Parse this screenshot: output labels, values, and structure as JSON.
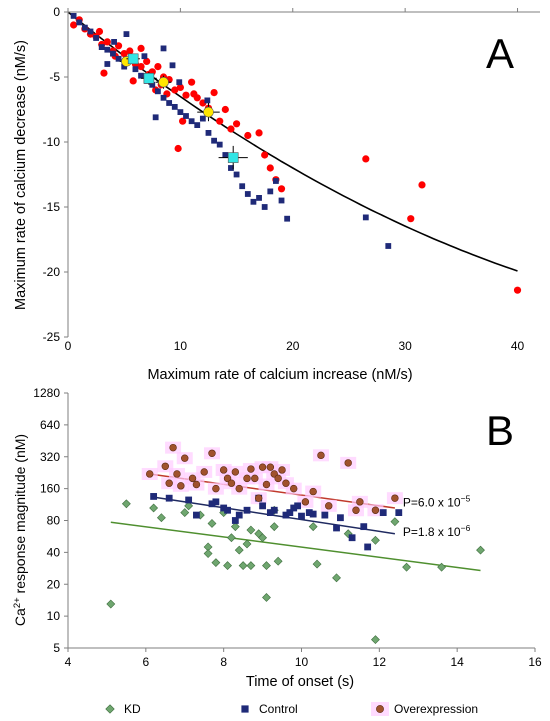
{
  "colors": {
    "red": "#ff0000",
    "navy": "#1f2a78",
    "black": "#000000",
    "cyan": "#33e5e5",
    "yellow": "#ffe600",
    "kd_green": "#6fa66f",
    "kd_line": "#4f8f2f",
    "overexp_brown": "#a0522d",
    "overexp_line": "#c0392b",
    "control_line": "#1f2a60",
    "halo": "#ffccff"
  },
  "chart_data": [
    {
      "id": "A",
      "panel_label": "A",
      "type": "scatter",
      "xlabel": "Maximum rate of calcium increase (nM/s)",
      "ylabel": "Maximum rate of calcium decrease  (nM/s)",
      "xlim": [
        0,
        42
      ],
      "ylim": [
        -25,
        0
      ],
      "xticks": [
        "0",
        "10",
        "20",
        "30",
        "40"
      ],
      "yticks": [
        "0",
        "-5",
        "-10",
        "-15",
        "-20",
        "-25"
      ],
      "xtick_values": [
        0,
        10,
        20,
        30,
        40
      ],
      "ytick_values": [
        0,
        -5,
        -10,
        -15,
        -20,
        -25
      ],
      "grid": false,
      "series": [
        {
          "marker": "circle",
          "color": "#ff0000",
          "points": [
            [
              0.5,
              -1
            ],
            [
              1,
              -0.6
            ],
            [
              1.5,
              -1.3
            ],
            [
              2,
              -1.7
            ],
            [
              2.5,
              -1.9
            ],
            [
              2.8,
              -1.5
            ],
            [
              3,
              -2.5
            ],
            [
              3.5,
              -2.3
            ],
            [
              4,
              -3
            ],
            [
              4.5,
              -2.6
            ],
            [
              4.2,
              -3.4
            ],
            [
              5,
              -3.2
            ],
            [
              5.5,
              -3
            ],
            [
              6,
              -4
            ],
            [
              6.5,
              -4.2
            ],
            [
              7,
              -3.8
            ],
            [
              7.5,
              -4.6
            ],
            [
              8,
              -4.2
            ],
            [
              8.5,
              -5
            ],
            [
              9,
              -5.2
            ],
            [
              9.5,
              -6
            ],
            [
              10,
              -5.8
            ],
            [
              10.5,
              -6.4
            ],
            [
              11,
              -5.4
            ],
            [
              11.5,
              -6.6
            ],
            [
              12,
              -7
            ],
            [
              12.5,
              -7.4
            ],
            [
              13,
              -6.2
            ],
            [
              13.5,
              -8.4
            ],
            [
              14,
              -7.5
            ],
            [
              14.5,
              -9
            ],
            [
              15,
              -8.6
            ],
            [
              16,
              -9.5
            ],
            [
              17,
              -9.3
            ],
            [
              17.5,
              -11
            ],
            [
              18,
              -12
            ],
            [
              18.5,
              -12.9
            ],
            [
              19,
              -13.6
            ],
            [
              6.5,
              -2.8
            ],
            [
              7.2,
              -4.8
            ],
            [
              8.8,
              -6.3
            ],
            [
              9.8,
              -10.5
            ],
            [
              10.2,
              -8.4
            ],
            [
              11.2,
              -6.3
            ],
            [
              3.2,
              -4.7
            ],
            [
              5.8,
              -5.3
            ],
            [
              7.8,
              -6
            ],
            [
              8.3,
              -5.6
            ],
            [
              26.5,
              -11.3
            ],
            [
              30.5,
              -15.9
            ],
            [
              31.5,
              -13.3
            ],
            [
              40,
              -21.4
            ]
          ]
        },
        {
          "marker": "square",
          "color": "#1f2a78",
          "points": [
            [
              0.5,
              -0.3
            ],
            [
              1,
              -0.8
            ],
            [
              1.5,
              -1.2
            ],
            [
              2,
              -1.5
            ],
            [
              2.5,
              -2
            ],
            [
              3,
              -2.7
            ],
            [
              3.5,
              -2.9
            ],
            [
              4,
              -3.2
            ],
            [
              4.5,
              -3.6
            ],
            [
              5,
              -4.2
            ],
            [
              5.5,
              -3.7
            ],
            [
              6,
              -4.4
            ],
            [
              6.5,
              -4.9
            ],
            [
              7,
              -5.3
            ],
            [
              7.5,
              -5.6
            ],
            [
              8,
              -6.1
            ],
            [
              8.5,
              -6.6
            ],
            [
              9,
              -7
            ],
            [
              9.5,
              -7.3
            ],
            [
              10,
              -7.7
            ],
            [
              10.5,
              -8
            ],
            [
              11,
              -8.4
            ],
            [
              11.5,
              -8.7
            ],
            [
              12,
              -8.2
            ],
            [
              12.5,
              -9.3
            ],
            [
              13,
              -9.9
            ],
            [
              13.5,
              -10.2
            ],
            [
              14,
              -11
            ],
            [
              14.5,
              -12
            ],
            [
              15,
              -12.5
            ],
            [
              15.5,
              -13.4
            ],
            [
              16,
              -14
            ],
            [
              16.5,
              -14.6
            ],
            [
              17,
              -14.3
            ],
            [
              17.5,
              -15
            ],
            [
              18,
              -13.8
            ],
            [
              18.5,
              -13
            ],
            [
              19,
              -14.5
            ],
            [
              19.5,
              -15.9
            ],
            [
              8.5,
              -2.8
            ],
            [
              5.2,
              -1.7
            ],
            [
              7.8,
              -8.1
            ],
            [
              3.5,
              -4
            ],
            [
              26.5,
              -15.8
            ],
            [
              28.5,
              -18
            ],
            [
              4.1,
              -2.3
            ],
            [
              6.8,
              -3.4
            ],
            [
              9.3,
              -4.1
            ],
            [
              9.9,
              -5.4
            ],
            [
              12.4,
              -6.8
            ]
          ]
        }
      ],
      "means": [
        {
          "x": 5.2,
          "y": -3.8,
          "color": "#ffe600",
          "marker": "circle",
          "xerr": 0.6,
          "yerr": 0.4
        },
        {
          "x": 5.8,
          "y": -3.6,
          "color": "#33e5e5",
          "marker": "square",
          "xerr": 0.6,
          "yerr": 0.4
        },
        {
          "x": 7.2,
          "y": -5.1,
          "color": "#33e5e5",
          "marker": "square",
          "xerr": 0.7,
          "yerr": 0.5
        },
        {
          "x": 8.5,
          "y": -5.4,
          "color": "#ffe600",
          "marker": "circle",
          "xerr": 0.7,
          "yerr": 0.5
        },
        {
          "x": 12.5,
          "y": -7.7,
          "color": "#ffe600",
          "marker": "circle",
          "xerr": 1.0,
          "yerr": 0.7
        },
        {
          "x": 14.7,
          "y": -11.2,
          "color": "#33e5e5",
          "marker": "square",
          "xerr": 1.3,
          "yerr": 0.9
        }
      ],
      "fit": {
        "type": "quadratic",
        "a": 0.0051,
        "b": -0.702,
        "c": 0,
        "x_range": [
          0,
          40
        ],
        "color": "#000000"
      }
    },
    {
      "id": "B",
      "panel_label": "B",
      "type": "scatter",
      "y_scale": "log",
      "xlabel": "Time of onset (s)",
      "ylabel_parts": [
        "Ca",
        "2+",
        " response  magnitude (nM)"
      ],
      "xlim": [
        4,
        16
      ],
      "ylim": [
        5,
        1280
      ],
      "xticks": [
        "4",
        "6",
        "8",
        "10",
        "12",
        "14",
        "16"
      ],
      "xtick_values": [
        4,
        6,
        8,
        10,
        12,
        14,
        16
      ],
      "yticks": [
        "5",
        "10",
        "20",
        "40",
        "80",
        "160",
        "320",
        "640",
        "1280"
      ],
      "ytick_values": [
        5,
        10,
        20,
        40,
        80,
        160,
        320,
        640,
        1280
      ],
      "grid": false,
      "legend": {
        "position": "bottom",
        "items": [
          {
            "label": "KD",
            "marker": "diamond",
            "color": "#6fa66f"
          },
          {
            "label": "Control",
            "marker": "square",
            "color": "#1f2a78"
          },
          {
            "label": "Overexpression",
            "marker": "circle",
            "color": "#a0522d"
          }
        ]
      },
      "annotations": [
        {
          "text": "P=6.0 x 10",
          "sup": "−5",
          "x": 12.4,
          "y": 118
        },
        {
          "text": "P=1.8 x 10",
          "sup": "−6",
          "x": 12.4,
          "y": 62
        }
      ],
      "series": [
        {
          "name": "KD",
          "marker": "diamond",
          "color": "#6fa66f",
          "line": {
            "color": "#4f8f2f",
            "x": [
              5.1,
              14.6
            ],
            "y": [
              77,
              27
            ]
          },
          "points": [
            [
              5.1,
              13
            ],
            [
              5.5,
              115
            ],
            [
              6.2,
              105
            ],
            [
              6.4,
              85
            ],
            [
              7,
              95
            ],
            [
              7.1,
              110
            ],
            [
              7.4,
              90
            ],
            [
              7.6,
              45
            ],
            [
              7.6,
              39
            ],
            [
              7.7,
              75
            ],
            [
              7.8,
              32
            ],
            [
              8,
              95
            ],
            [
              8.1,
              30
            ],
            [
              8.2,
              55
            ],
            [
              8.3,
              70
            ],
            [
              8.4,
              42
            ],
            [
              8.5,
              30
            ],
            [
              8.6,
              48
            ],
            [
              8.7,
              65
            ],
            [
              8.7,
              30
            ],
            [
              8.9,
              60
            ],
            [
              9,
              55
            ],
            [
              9.1,
              30
            ],
            [
              9.1,
              15
            ],
            [
              9.3,
              100
            ],
            [
              9.3,
              70
            ],
            [
              9.4,
              33
            ],
            [
              10.3,
              70
            ],
            [
              10.4,
              31
            ],
            [
              10.9,
              23
            ],
            [
              11.2,
              60
            ],
            [
              11.9,
              6
            ],
            [
              11.9,
              52
            ],
            [
              12.4,
              78
            ],
            [
              12.7,
              29
            ],
            [
              13.6,
              29
            ],
            [
              14.6,
              42
            ]
          ]
        },
        {
          "name": "Control",
          "marker": "square",
          "color": "#1f2a78",
          "line": {
            "color": "#1f2a60",
            "x": [
              6.2,
              12.4
            ],
            "y": [
              133,
              60
            ]
          },
          "points": [
            [
              6.2,
              135
            ],
            [
              6.6,
              130
            ],
            [
              7.1,
              125
            ],
            [
              7.3,
              90
            ],
            [
              7.7,
              115
            ],
            [
              7.8,
              120
            ],
            [
              8,
              105
            ],
            [
              8.1,
              100
            ],
            [
              8.3,
              80
            ],
            [
              8.4,
              90
            ],
            [
              8.6,
              100
            ],
            [
              8.9,
              130
            ],
            [
              9,
              110
            ],
            [
              9.2,
              95
            ],
            [
              9.3,
              100
            ],
            [
              9.6,
              90
            ],
            [
              9.7,
              95
            ],
            [
              9.8,
              105
            ],
            [
              9.9,
              110
            ],
            [
              10,
              88
            ],
            [
              10.2,
              95
            ],
            [
              10.3,
              92
            ],
            [
              10.6,
              90
            ],
            [
              10.9,
              68
            ],
            [
              11,
              85
            ],
            [
              11.3,
              55
            ],
            [
              11.6,
              70
            ],
            [
              11.7,
              45
            ],
            [
              12.1,
              95
            ],
            [
              12.5,
              95
            ]
          ]
        },
        {
          "name": "Overexpression",
          "marker": "circle",
          "color": "#a0522d",
          "line": {
            "color": "#c0392b",
            "x": [
              6.1,
              12.4
            ],
            "y": [
              220,
              105
            ]
          },
          "points": [
            [
              6.1,
              220
            ],
            [
              6.5,
              260
            ],
            [
              6.6,
              180
            ],
            [
              6.7,
              390
            ],
            [
              6.8,
              220
            ],
            [
              6.9,
              170
            ],
            [
              7,
              310
            ],
            [
              7.2,
              200
            ],
            [
              7.3,
              175
            ],
            [
              7.5,
              230
            ],
            [
              7.7,
              345
            ],
            [
              7.8,
              160
            ],
            [
              8,
              240
            ],
            [
              8.1,
              200
            ],
            [
              8.2,
              180
            ],
            [
              8.3,
              230
            ],
            [
              8.4,
              160
            ],
            [
              8.6,
              200
            ],
            [
              8.7,
              245
            ],
            [
              8.8,
              200
            ],
            [
              8.9,
              130
            ],
            [
              9,
              255
            ],
            [
              9.1,
              175
            ],
            [
              9.2,
              255
            ],
            [
              9.3,
              220
            ],
            [
              9.4,
              200
            ],
            [
              9.5,
              240
            ],
            [
              9.6,
              180
            ],
            [
              9.8,
              160
            ],
            [
              10.1,
              120
            ],
            [
              10.3,
              150
            ],
            [
              10.5,
              330
            ],
            [
              10.7,
              110
            ],
            [
              11.2,
              280
            ],
            [
              11.4,
              100
            ],
            [
              11.5,
              120
            ],
            [
              11.9,
              100
            ],
            [
              12.4,
              130
            ]
          ]
        }
      ]
    }
  ]
}
